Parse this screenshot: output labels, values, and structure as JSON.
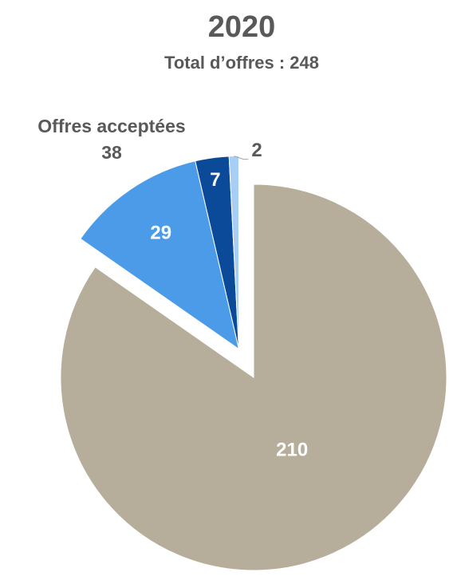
{
  "chart_data": {
    "type": "pie",
    "title": "2020",
    "subtitle": "Total d’offres : 248",
    "categories": [
      null,
      null,
      null,
      null
    ],
    "values": [
      210,
      29,
      7,
      2
    ],
    "colors": [
      "#b6ae9b",
      "#4b9be9",
      "#0b4a98",
      "#a9cef4"
    ],
    "exploded": [
      false,
      true,
      true,
      true
    ],
    "annotation": {
      "label": "Offres acceptées",
      "value": 38
    }
  }
}
